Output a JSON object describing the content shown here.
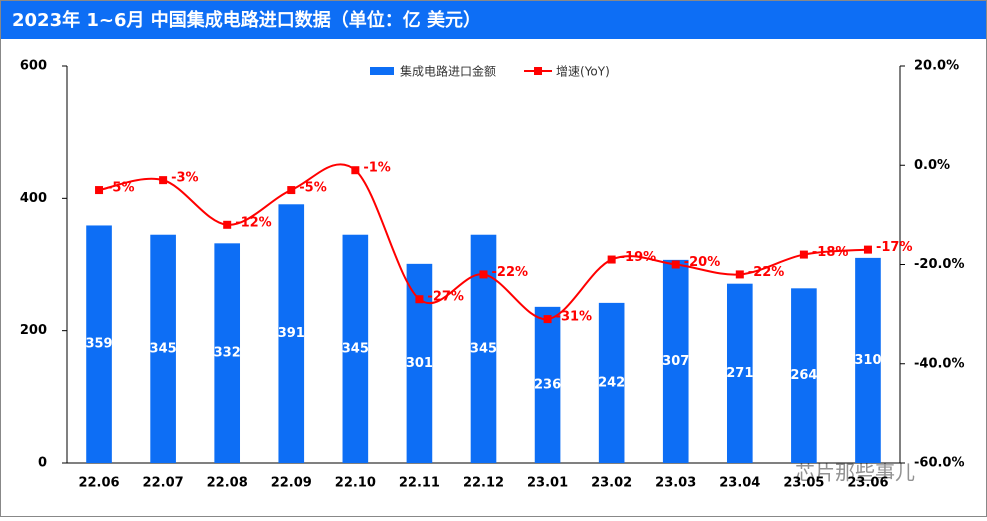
{
  "chart_data": {
    "type": "bar_line",
    "title": "2023年 1~6月 中国集成电路进口数据（单位：亿 美元）",
    "categories": [
      "22.06",
      "22.07",
      "22.08",
      "22.09",
      "22.10",
      "22.11",
      "22.12",
      "23.01",
      "23.02",
      "23.03",
      "23.04",
      "23.05",
      "23.06"
    ],
    "series": [
      {
        "name": "集成电路进口金额",
        "color": "#0d6ef5",
        "kind": "bar",
        "values": [
          359,
          345,
          332,
          391,
          345,
          301,
          345,
          236,
          242,
          307,
          271,
          264,
          310
        ]
      },
      {
        "name": "增速(YoY)",
        "color": "#ff0000",
        "kind": "line",
        "axis": "y2",
        "values": [
          -5,
          -3,
          -12,
          -5,
          -1,
          -27,
          -22,
          -31,
          -19,
          -20,
          -22,
          -18,
          -17
        ],
        "value_labels": [
          "-5%",
          "-3%",
          "-12%",
          "-5%",
          "-1%",
          "-27%",
          "-22%",
          "-31%",
          "-19%",
          "-20%",
          "-22%",
          "-18%",
          "-17%"
        ]
      }
    ],
    "ylim": [
      0,
      600
    ],
    "yticks": [
      0,
      200,
      400,
      600
    ],
    "y2lim": [
      -60,
      20
    ],
    "y2ticks": [
      {
        "value": 20,
        "label": "20.0%"
      },
      {
        "value": 0,
        "label": "0.0%"
      },
      {
        "value": -20,
        "label": "-20.0%"
      },
      {
        "value": -40,
        "label": "-40.0%"
      },
      {
        "value": -60,
        "label": "-60.0%"
      }
    ],
    "watermark": "芯片那些事儿"
  }
}
